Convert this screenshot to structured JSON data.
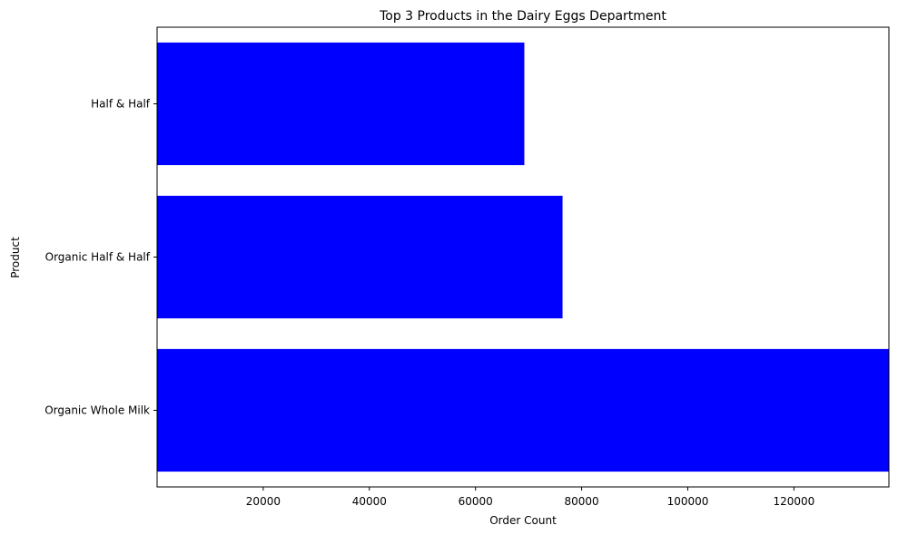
{
  "chart_data": {
    "type": "bar",
    "orientation": "horizontal",
    "title": "Top 3 Products in the Dairy Eggs Department",
    "xlabel": "Order Count",
    "ylabel": "Product",
    "categories": [
      "Organic Whole Milk",
      "Organic Half & Half",
      "Half & Half"
    ],
    "values": [
      137900,
      76400,
      69200
    ],
    "xlim": [
      0,
      137900
    ],
    "xticks": [
      20000,
      40000,
      60000,
      80000,
      100000,
      120000
    ],
    "xtick_labels": [
      "20000",
      "40000",
      "60000",
      "80000",
      "100000",
      "120000"
    ],
    "bar_color": "#0000ff",
    "grid": false
  }
}
